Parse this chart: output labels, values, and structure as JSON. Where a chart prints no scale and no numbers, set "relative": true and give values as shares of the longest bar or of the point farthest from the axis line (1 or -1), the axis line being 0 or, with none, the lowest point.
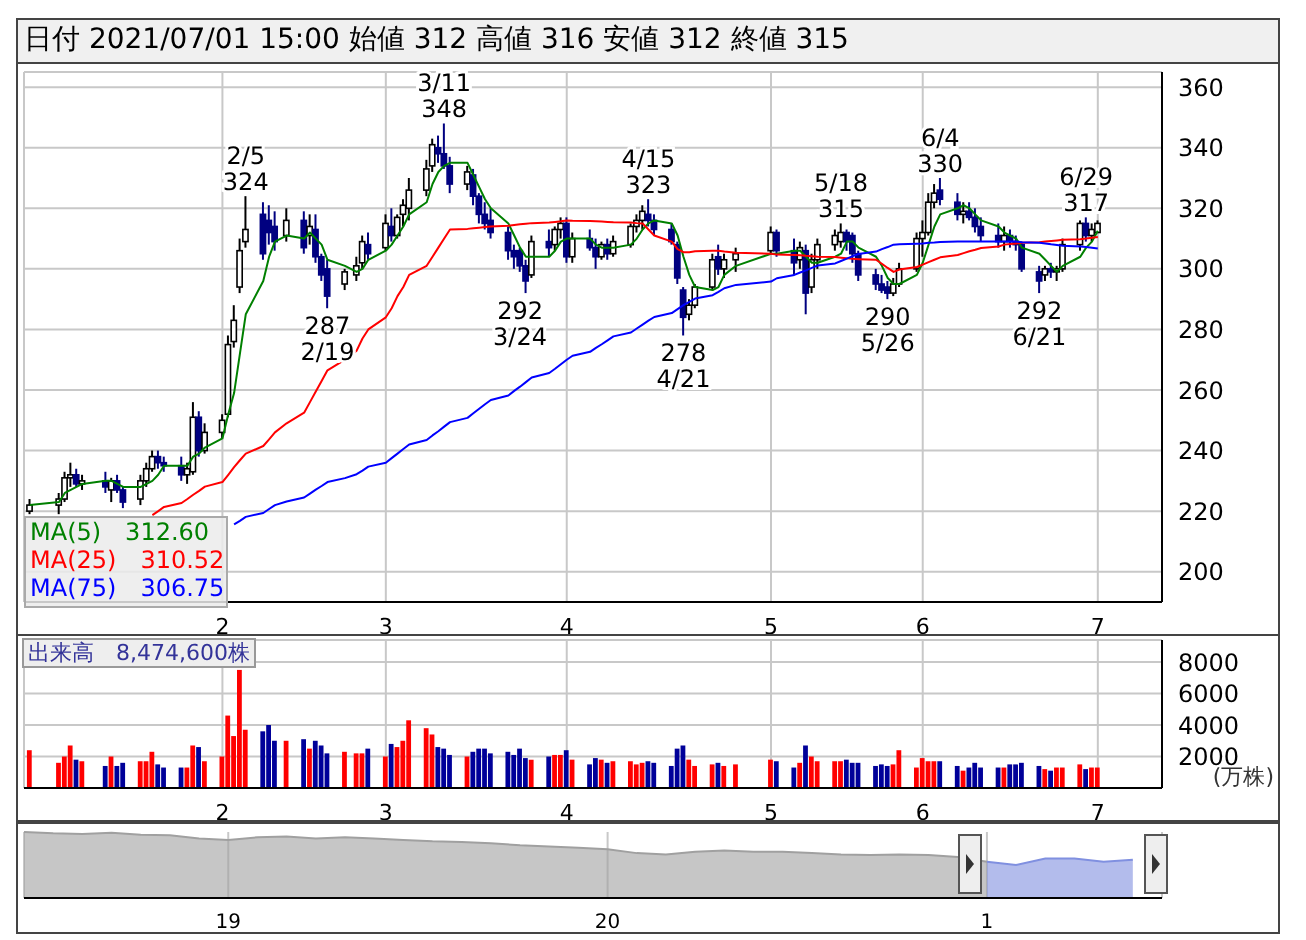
{
  "chart_data": [
    {
      "type": "candlestick",
      "title": "日付 2021/07/01 15:00 始値 312 高値 316 安値 312 終値 315",
      "colors": [
        "#ffffff",
        "#ffffff",
        "#ffffff",
        "#ffffff",
        "#000080",
        "#ffffff",
        "#000080",
        "#ffffff",
        "#000080",
        "#000080",
        "#ffffff",
        "#ffffff",
        "#ffffff",
        "#000080",
        "#000080",
        "#000080",
        "#ffffff",
        "#ffffff",
        "#000080",
        "#ffffff",
        "#ffffff",
        "#ffffff",
        "#ffffff",
        "#ffffff",
        "#ffffff",
        "#000080",
        "#000080",
        "#000080",
        "#ffffff",
        "#000080",
        "#ffffff",
        "#000080",
        "#000080",
        "#000080",
        "#ffffff",
        "#ffffff",
        "#ffffff",
        "#000080",
        "#ffffff",
        "#000080",
        "#ffffff",
        "#ffffff",
        "#ffffff",
        "#ffffff",
        "#ffffff",
        "#000080",
        "#000080",
        "#000080",
        "#ffffff",
        "#000080",
        "#000080",
        "#000080",
        "#000080",
        "#000080",
        "#000080",
        "#000080",
        "#000080",
        "#ffffff",
        "#000080",
        "#ffffff",
        "#ffffff",
        "#000080",
        "#ffffff",
        "#000080",
        "#000080",
        "#ffffff",
        "#000080",
        "#ffffff",
        "#ffffff",
        "#ffffff",
        "#ffffff",
        "#000080",
        "#000080",
        "#000080",
        "#000080",
        "#000080",
        "#ffffff",
        "#ffffff",
        "#ffffff",
        "#000080",
        "#ffffff",
        "#ffffff",
        "#ffffff",
        "#000080",
        "#000080",
        "#ffffff",
        "#000080",
        "#ffffff",
        "#ffffff",
        "#ffffff",
        "#ffffff",
        "#000080",
        "#000080",
        "#000080",
        "#000080",
        "#000080",
        "#000080",
        "#ffffff",
        "#ffffff",
        "#ffffff",
        "#ffffff",
        "#ffffff",
        "#ffffff",
        "#000080",
        "#000080",
        "#ffffff",
        "#000080",
        "#000080",
        "#000080",
        "#000080",
        "#ffffff",
        "#000080",
        "#000080",
        "#000080",
        "#000080",
        "#ffffff",
        "#000080",
        "#ffffff",
        "#ffffff",
        "#ffffff",
        "#000080",
        "#ffffff",
        "#ffffff"
      ],
      "x": [
        "2020-12-30",
        "2021-01-04",
        "2021-01-05",
        "2021-01-06",
        "2021-01-07",
        "2021-01-08",
        "2021-01-12",
        "2021-01-13",
        "2021-01-14",
        "2021-01-15",
        "2021-01-18",
        "2021-01-19",
        "2021-01-20",
        "2021-01-21",
        "2021-01-22",
        "2021-01-25",
        "2021-01-26",
        "2021-01-27",
        "2021-01-28",
        "2021-01-29",
        "2021-02-01",
        "2021-02-02",
        "2021-02-03",
        "2021-02-04",
        "2021-02-05",
        "2021-02-08",
        "2021-02-09",
        "2021-02-10",
        "2021-02-12",
        "2021-02-15",
        "2021-02-16",
        "2021-02-17",
        "2021-02-18",
        "2021-02-19",
        "2021-02-22",
        "2021-02-24",
        "2021-02-25",
        "2021-02-26",
        "2021-03-01",
        "2021-03-02",
        "2021-03-03",
        "2021-03-04",
        "2021-03-05",
        "2021-03-08",
        "2021-03-09",
        "2021-03-10",
        "2021-03-11",
        "2021-03-12",
        "2021-03-15",
        "2021-03-16",
        "2021-03-17",
        "2021-03-18",
        "2021-03-19",
        "2021-03-22",
        "2021-03-23",
        "2021-03-24",
        "2021-03-25",
        "2021-03-26",
        "2021-03-29",
        "2021-03-30",
        "2021-03-31",
        "2021-04-01",
        "2021-04-02",
        "2021-04-05",
        "2021-04-06",
        "2021-04-07",
        "2021-04-08",
        "2021-04-09",
        "2021-04-12",
        "2021-04-13",
        "2021-04-14",
        "2021-04-15",
        "2021-04-16",
        "2021-04-19",
        "2021-04-20",
        "2021-04-21",
        "2021-04-22",
        "2021-04-23",
        "2021-04-26",
        "2021-04-27",
        "2021-04-28",
        "2021-04-30",
        "2021-05-06",
        "2021-05-07",
        "2021-05-10",
        "2021-05-11",
        "2021-05-12",
        "2021-05-13",
        "2021-05-14",
        "2021-05-17",
        "2021-05-18",
        "2021-05-19",
        "2021-05-20",
        "2021-05-21",
        "2021-05-24",
        "2021-05-25",
        "2021-05-26",
        "2021-05-27",
        "2021-05-28",
        "2021-05-31",
        "2021-06-01",
        "2021-06-02",
        "2021-06-03",
        "2021-06-04",
        "2021-06-07",
        "2021-06-08",
        "2021-06-09",
        "2021-06-10",
        "2021-06-11",
        "2021-06-14",
        "2021-06-15",
        "2021-06-16",
        "2021-06-17",
        "2021-06-18",
        "2021-06-21",
        "2021-06-22",
        "2021-06-23",
        "2021-06-24",
        "2021-06-25",
        "2021-06-28",
        "2021-06-29",
        "2021-06-30",
        "2021-07-01"
      ],
      "ohlc": [
        [
          220,
          224,
          219,
          222
        ],
        [
          222,
          226,
          219,
          224
        ],
        [
          224,
          233,
          223,
          231
        ],
        [
          231,
          236,
          228,
          232
        ],
        [
          232,
          234,
          228,
          229
        ],
        [
          229,
          232,
          227,
          230
        ],
        [
          230,
          233,
          226,
          228
        ],
        [
          227,
          231,
          223,
          230
        ],
        [
          230,
          232,
          226,
          227
        ],
        [
          227,
          228,
          221,
          223
        ],
        [
          224,
          232,
          222,
          230
        ],
        [
          230,
          236,
          228,
          234
        ],
        [
          234,
          240,
          233,
          238
        ],
        [
          238,
          240,
          234,
          236
        ],
        [
          236,
          238,
          233,
          235
        ],
        [
          235,
          238,
          230,
          232
        ],
        [
          232,
          236,
          229,
          234
        ],
        [
          233,
          256,
          232,
          251
        ],
        [
          251,
          253,
          238,
          240
        ],
        [
          240,
          249,
          239,
          246
        ],
        [
          246,
          252,
          244,
          250
        ],
        [
          252,
          278,
          251,
          275
        ],
        [
          276,
          288,
          274,
          283
        ],
        [
          294,
          310,
          292,
          306
        ],
        [
          309,
          324,
          307,
          313
        ],
        [
          318,
          322,
          303,
          305
        ],
        [
          316,
          321,
          308,
          312
        ],
        [
          314,
          319,
          306,
          309
        ],
        [
          311,
          320,
          309,
          316
        ],
        [
          316,
          319,
          305,
          307
        ],
        [
          311,
          318,
          308,
          314
        ],
        [
          313,
          318,
          302,
          304
        ],
        [
          304,
          305,
          296,
          298
        ],
        [
          300,
          303,
          287,
          291
        ],
        [
          295,
          300,
          293,
          299
        ],
        [
          298,
          304,
          296,
          301
        ],
        [
          302,
          311,
          300,
          309
        ],
        [
          308,
          312,
          303,
          305
        ],
        [
          307,
          318,
          306,
          315
        ],
        [
          314,
          320,
          309,
          311
        ],
        [
          311,
          318,
          310,
          317
        ],
        [
          318,
          323,
          314,
          321
        ],
        [
          320,
          330,
          316,
          326
        ],
        [
          326,
          336,
          324,
          333
        ],
        [
          334,
          343,
          332,
          341
        ],
        [
          340,
          344,
          335,
          338
        ],
        [
          338,
          348,
          333,
          334
        ],
        [
          334,
          337,
          325,
          328
        ],
        [
          328,
          334,
          326,
          332
        ],
        [
          331,
          333,
          321,
          324
        ],
        [
          324,
          325,
          315,
          318
        ],
        [
          318,
          322,
          313,
          315
        ],
        [
          316,
          320,
          310,
          312
        ],
        [
          312,
          314,
          303,
          306
        ],
        [
          306,
          308,
          300,
          304
        ],
        [
          306,
          307,
          299,
          301
        ],
        [
          301,
          303,
          292,
          296
        ],
        [
          298,
          311,
          297,
          309
        ],
        [
          309,
          313,
          304,
          307
        ],
        [
          308,
          314,
          306,
          313
        ],
        [
          313,
          317,
          310,
          315
        ],
        [
          315,
          317,
          302,
          304
        ],
        [
          304,
          312,
          302,
          310
        ],
        [
          310,
          313,
          306,
          307
        ],
        [
          307,
          310,
          300,
          304
        ],
        [
          304,
          309,
          303,
          308
        ],
        [
          308,
          310,
          303,
          305
        ],
        [
          305,
          311,
          304,
          309
        ],
        [
          308,
          315,
          307,
          314
        ],
        [
          314,
          318,
          312,
          316
        ],
        [
          316,
          321,
          313,
          319
        ],
        [
          318,
          323,
          314,
          316
        ],
        [
          316,
          318,
          311,
          313
        ],
        [
          313,
          315,
          308,
          309
        ],
        [
          308,
          309,
          295,
          297
        ],
        [
          293,
          294,
          278,
          284
        ],
        [
          285,
          290,
          283,
          288
        ],
        [
          288,
          295,
          287,
          294
        ],
        [
          294,
          305,
          293,
          303
        ],
        [
          304,
          308,
          298,
          300
        ],
        [
          300,
          305,
          297,
          303
        ],
        [
          303,
          307,
          299,
          305
        ],
        [
          306,
          314,
          305,
          312
        ],
        [
          312,
          313,
          304,
          306
        ],
        [
          306,
          310,
          298,
          302
        ],
        [
          303,
          309,
          300,
          307
        ],
        [
          306,
          308,
          285,
          292
        ],
        [
          294,
          305,
          292,
          303
        ],
        [
          303,
          310,
          300,
          308
        ],
        [
          308,
          313,
          306,
          311
        ],
        [
          309,
          315,
          307,
          312
        ],
        [
          312,
          313,
          306,
          309
        ],
        [
          311,
          312,
          302,
          305
        ],
        [
          305,
          306,
          296,
          298
        ],
        [
          298,
          300,
          293,
          295
        ],
        [
          295,
          298,
          292,
          293
        ],
        [
          294,
          296,
          290,
          292
        ],
        [
          292,
          297,
          291,
          295
        ],
        [
          295,
          302,
          294,
          300
        ],
        [
          300,
          312,
          299,
          310
        ],
        [
          310,
          316,
          304,
          312
        ],
        [
          312,
          325,
          311,
          322
        ],
        [
          322,
          328,
          320,
          325
        ],
        [
          326,
          330,
          321,
          323
        ],
        [
          322,
          325,
          316,
          318
        ],
        [
          318,
          322,
          315,
          319
        ],
        [
          319,
          322,
          316,
          317
        ],
        [
          317,
          320,
          312,
          314
        ],
        [
          314,
          317,
          309,
          311
        ],
        [
          311,
          315,
          307,
          309
        ],
        [
          309,
          314,
          306,
          311
        ],
        [
          311,
          313,
          307,
          309
        ],
        [
          309,
          311,
          306,
          308
        ],
        [
          308,
          309,
          299,
          300
        ],
        [
          299,
          301,
          292,
          296
        ],
        [
          298,
          301,
          296,
          300
        ],
        [
          300,
          302,
          297,
          299
        ],
        [
          299,
          301,
          296,
          300
        ],
        [
          300,
          310,
          299,
          308
        ],
        [
          308,
          316,
          306,
          315
        ],
        [
          315,
          317,
          309,
          311
        ],
        [
          311,
          315,
          309,
          313
        ],
        [
          312,
          316,
          312,
          315
        ]
      ],
      "series": [
        {
          "type": "line",
          "name": "MA(5)　312.60",
          "color": "#008000",
          "values": [
            222,
            223,
            226,
            227,
            228,
            229,
            230,
            230,
            229,
            228,
            228,
            229,
            230,
            232,
            235,
            235,
            235,
            238,
            239,
            241,
            244,
            252,
            259,
            272,
            285,
            296,
            304,
            309,
            311,
            310,
            312,
            310,
            308,
            303,
            301,
            299,
            300,
            303,
            306,
            308,
            311,
            314,
            318,
            322,
            328,
            332,
            334,
            335,
            335,
            331,
            327,
            323,
            320,
            315,
            311,
            307,
            304,
            304,
            304,
            306,
            309,
            310,
            310,
            310,
            308,
            307,
            307,
            307,
            308,
            310,
            313,
            315,
            316,
            315,
            311,
            304,
            298,
            294,
            293,
            294,
            298,
            301,
            305,
            305,
            306,
            306,
            304,
            302,
            302,
            304,
            305,
            309,
            309,
            307,
            304,
            301,
            297,
            295,
            295,
            298,
            302,
            308,
            314,
            318,
            320,
            321,
            320,
            318,
            316,
            314,
            312,
            311,
            310,
            307,
            305,
            303,
            301,
            299,
            301,
            304,
            307,
            309,
            312.6
          ]
        },
        {
          "type": "line",
          "name": "MA(25)　310.52",
          "color": "#ff0000",
          "values": [
            null,
            null,
            null,
            null,
            null,
            null,
            null,
            null,
            null,
            null,
            null,
            null,
            218.7,
            220,
            221.4,
            222.7,
            224,
            225.4,
            226.7,
            228.1,
            229.6,
            232,
            234.5,
            236.8,
            239,
            241.5,
            243.7,
            246,
            249,
            252.5,
            256,
            259.5,
            263,
            266.5,
            270,
            273,
            277,
            280,
            284,
            287,
            291,
            294,
            298,
            301,
            304,
            307,
            310,
            313,
            313.2,
            313.4,
            313.6,
            313.8,
            314,
            314.2,
            314.5,
            314.7,
            314.9,
            315.1,
            315.3,
            315.5,
            315.7,
            316,
            315.9,
            315.8,
            315.7,
            315.6,
            315.5,
            315.4,
            315.3,
            315.1,
            315,
            313,
            311,
            309,
            306.5,
            305.5,
            305.5,
            305.8,
            306,
            306,
            305.7,
            305.3,
            305,
            304.7,
            304.6,
            304.5,
            304.3,
            304.2,
            304,
            303.9,
            303.7,
            303.5,
            303.3,
            303.2,
            303,
            301.7,
            300.3,
            299,
            299.8,
            300.6,
            301.4,
            302.2,
            303,
            303.8,
            304.6,
            305.2,
            305.8,
            306.3,
            306.9,
            307.4,
            308,
            308.2,
            308.4,
            308.6,
            308.8,
            309,
            309.2,
            309.4,
            309.6,
            309.8,
            310,
            310.3,
            310.52
          ]
        },
        {
          "type": "line",
          "name": "MA(75)　306.75",
          "color": "#0000ff",
          "values": [
            null,
            null,
            null,
            null,
            null,
            null,
            null,
            null,
            null,
            null,
            null,
            null,
            null,
            null,
            null,
            null,
            null,
            null,
            null,
            null,
            null,
            null,
            215.6,
            216.8,
            218.1,
            219.4,
            220.7,
            222,
            223.2,
            224.5,
            225.8,
            227.1,
            228.3,
            229.6,
            230.9,
            232.2,
            233.4,
            234.7,
            236,
            237.5,
            239,
            240.5,
            242,
            243.5,
            245,
            246.4,
            247.9,
            249.4,
            250.8,
            252.3,
            253.8,
            255.3,
            256.7,
            258.2,
            259.7,
            261.1,
            262.6,
            264.1,
            265.6,
            267,
            268.5,
            270,
            271.3,
            272.6,
            273.9,
            275.1,
            276.4,
            277.7,
            279,
            280.3,
            281.6,
            282.9,
            284.1,
            285.4,
            286.7,
            288,
            289.1,
            290.2,
            291.3,
            292.4,
            293.6,
            294.7,
            295.8,
            296.9,
            298,
            298.8,
            299.5,
            300.3,
            301.1,
            301.8,
            302.6,
            303.4,
            304.2,
            304.9,
            305.7,
            306.5,
            307.2,
            308,
            308.1,
            308.3,
            308.4,
            308.6,
            308.7,
            308.9,
            309,
            309,
            309,
            309,
            309,
            309,
            309,
            309,
            309,
            308.8,
            308.6,
            308.4,
            308.1,
            307.9,
            307.6,
            307.4,
            307.2,
            307,
            306.75
          ]
        }
      ],
      "ylim": [
        190,
        365
      ],
      "yticks": [
        200,
        220,
        240,
        260,
        280,
        300,
        320,
        340,
        360
      ],
      "xlim": [
        "2020-12-29",
        "2021-07-12"
      ],
      "xticks": [
        {
          "value": "2021-02-01",
          "label": "2"
        },
        {
          "value": "2021-03-01",
          "label": "3"
        },
        {
          "value": "2021-04-01",
          "label": "4"
        },
        {
          "value": "2021-05-06",
          "label": "5"
        },
        {
          "value": "2021-06-01",
          "label": "6"
        },
        {
          "value": "2021-07-01",
          "label": "7"
        }
      ],
      "grid": true,
      "legend": "bottom left",
      "annotations": [
        {
          "text": "2/5\n324",
          "x": "2021-02-05",
          "y": 324
        },
        {
          "text": "287\n2/19",
          "x": "2021-02-19",
          "y": 287
        },
        {
          "text": "3/11\n348",
          "x": "2021-03-11",
          "y": 348
        },
        {
          "text": "292\n3/24",
          "x": "2021-03-24",
          "y": 292
        },
        {
          "text": "4/15\n323",
          "x": "2021-04-15",
          "y": 323
        },
        {
          "text": "278\n4/21",
          "x": "2021-04-21",
          "y": 278
        },
        {
          "text": "5/18\n315",
          "x": "2021-05-18",
          "y": 315
        },
        {
          "text": "290\n5/26",
          "x": "2021-05-26",
          "y": 290
        },
        {
          "text": "6/4\n330",
          "x": "2021-06-04",
          "y": 330
        },
        {
          "text": "292\n6/21",
          "x": "2021-06-21",
          "y": 292
        },
        {
          "text": "6/29\n317",
          "x": "2021-06-29",
          "y": 317
        }
      ]
    },
    {
      "type": "bar",
      "title": "出来高　8,474,600株",
      "ylabel": "(万株)",
      "x": [
        "2020-12-30",
        "2021-01-04",
        "2021-01-05",
        "2021-01-06",
        "2021-01-07",
        "2021-01-08",
        "2021-01-12",
        "2021-01-13",
        "2021-01-14",
        "2021-01-15",
        "2021-01-18",
        "2021-01-19",
        "2021-01-20",
        "2021-01-21",
        "2021-01-22",
        "2021-01-25",
        "2021-01-26",
        "2021-01-27",
        "2021-01-28",
        "2021-01-29",
        "2021-02-01",
        "2021-02-02",
        "2021-02-03",
        "2021-02-04",
        "2021-02-05",
        "2021-02-08",
        "2021-02-09",
        "2021-02-10",
        "2021-02-12",
        "2021-02-15",
        "2021-02-16",
        "2021-02-17",
        "2021-02-18",
        "2021-02-19",
        "2021-02-22",
        "2021-02-24",
        "2021-02-25",
        "2021-02-26",
        "2021-03-01",
        "2021-03-02",
        "2021-03-03",
        "2021-03-04",
        "2021-03-05",
        "2021-03-08",
        "2021-03-09",
        "2021-03-10",
        "2021-03-11",
        "2021-03-12",
        "2021-03-15",
        "2021-03-16",
        "2021-03-17",
        "2021-03-18",
        "2021-03-19",
        "2021-03-22",
        "2021-03-23",
        "2021-03-24",
        "2021-03-25",
        "2021-03-26",
        "2021-03-29",
        "2021-03-30",
        "2021-03-31",
        "2021-04-01",
        "2021-04-02",
        "2021-04-05",
        "2021-04-06",
        "2021-04-07",
        "2021-04-08",
        "2021-04-09",
        "2021-04-12",
        "2021-04-13",
        "2021-04-14",
        "2021-04-15",
        "2021-04-16",
        "2021-04-19",
        "2021-04-20",
        "2021-04-21",
        "2021-04-22",
        "2021-04-23",
        "2021-04-26",
        "2021-04-27",
        "2021-04-28",
        "2021-04-30",
        "2021-05-06",
        "2021-05-07",
        "2021-05-10",
        "2021-05-11",
        "2021-05-12",
        "2021-05-13",
        "2021-05-14",
        "2021-05-17",
        "2021-05-18",
        "2021-05-19",
        "2021-05-20",
        "2021-05-21",
        "2021-05-24",
        "2021-05-25",
        "2021-05-26",
        "2021-05-27",
        "2021-05-28",
        "2021-05-31",
        "2021-06-01",
        "2021-06-02",
        "2021-06-03",
        "2021-06-04",
        "2021-06-07",
        "2021-06-08",
        "2021-06-09",
        "2021-06-10",
        "2021-06-11",
        "2021-06-14",
        "2021-06-15",
        "2021-06-16",
        "2021-06-17",
        "2021-06-18",
        "2021-06-21",
        "2021-06-22",
        "2021-06-23",
        "2021-06-24",
        "2021-06-25",
        "2021-06-28",
        "2021-06-29",
        "2021-06-30",
        "2021-07-01"
      ],
      "values": [
        2400,
        1600,
        2000,
        2700,
        1800,
        1700,
        1400,
        2000,
        1400,
        1600,
        1700,
        1700,
        2300,
        1500,
        1300,
        1300,
        1300,
        2700,
        2600,
        1700,
        2000,
        4600,
        3300,
        7500,
        3700,
        3600,
        4000,
        3000,
        3000,
        3100,
        2500,
        3000,
        2700,
        2200,
        2300,
        2200,
        2200,
        2500,
        2000,
        2800,
        2600,
        3000,
        4300,
        3800,
        3400,
        2600,
        2500,
        2100,
        2000,
        2300,
        2500,
        2500,
        2200,
        2300,
        2100,
        2500,
        1900,
        1800,
        2000,
        2100,
        2100,
        2400,
        1800,
        1500,
        1900,
        1800,
        1600,
        1700,
        1700,
        1500,
        1600,
        1700,
        1600,
        1400,
        2500,
        2700,
        1800,
        1400,
        1500,
        1600,
        1400,
        1500,
        1800,
        1700,
        1300,
        1600,
        2700,
        2000,
        1700,
        1700,
        1700,
        1800,
        1600,
        1600,
        1400,
        1500,
        1400,
        1500,
        2400,
        1300,
        1900,
        1700,
        1700,
        1700,
        1400,
        1100,
        1300,
        1600,
        1300,
        1300,
        1300,
        1500,
        1500,
        1600,
        1400,
        1200,
        1100,
        1300,
        1300,
        1500,
        1200,
        1300,
        1300
      ],
      "colors": [
        "#ff0000",
        "#ff0000",
        "#ff0000",
        "#ff0000",
        "#000099",
        "#ff0000",
        "#000099",
        "#ff0000",
        "#000099",
        "#000099",
        "#ff0000",
        "#ff0000",
        "#ff0000",
        "#000099",
        "#000099",
        "#000099",
        "#ff0000",
        "#ff0000",
        "#000099",
        "#ff0000",
        "#ff0000",
        "#ff0000",
        "#ff0000",
        "#ff0000",
        "#ff0000",
        "#000099",
        "#000099",
        "#000099",
        "#ff0000",
        "#000099",
        "#ff0000",
        "#000099",
        "#000099",
        "#000099",
        "#ff0000",
        "#ff0000",
        "#ff0000",
        "#000099",
        "#ff0000",
        "#000099",
        "#ff0000",
        "#ff0000",
        "#ff0000",
        "#ff0000",
        "#ff0000",
        "#000099",
        "#000099",
        "#000099",
        "#ff0000",
        "#000099",
        "#000099",
        "#000099",
        "#000099",
        "#000099",
        "#000099",
        "#000099",
        "#000099",
        "#ff0000",
        "#000099",
        "#ff0000",
        "#ff0000",
        "#000099",
        "#ff0000",
        "#000099",
        "#000099",
        "#ff0000",
        "#000099",
        "#ff0000",
        "#ff0000",
        "#ff0000",
        "#ff0000",
        "#000099",
        "#000099",
        "#000099",
        "#000099",
        "#000099",
        "#ff0000",
        "#ff0000",
        "#ff0000",
        "#000099",
        "#ff0000",
        "#ff0000",
        "#ff0000",
        "#000099",
        "#000099",
        "#ff0000",
        "#000099",
        "#ff0000",
        "#ff0000",
        "#ff0000",
        "#ff0000",
        "#000099",
        "#000099",
        "#000099",
        "#000099",
        "#000099",
        "#000099",
        "#ff0000",
        "#ff0000",
        "#ff0000",
        "#ff0000",
        "#ff0000",
        "#ff0000",
        "#000099",
        "#000099",
        "#ff0000",
        "#000099",
        "#000099",
        "#000099",
        "#000099",
        "#ff0000",
        "#000099",
        "#000099",
        "#000099",
        "#000099",
        "#ff0000",
        "#000099",
        "#ff0000",
        "#ff0000",
        "#ff0000",
        "#000099",
        "#ff0000",
        "#ff0000"
      ],
      "ylim": [
        0,
        9400
      ],
      "yticks": [
        2000,
        4000,
        6000,
        8000
      ],
      "xlim": [
        "2020-12-29",
        "2021-07-12"
      ],
      "xticks": [
        {
          "value": "2021-02-01",
          "label": "2"
        },
        {
          "value": "2021-03-01",
          "label": "3"
        },
        {
          "value": "2021-04-01",
          "label": "4"
        },
        {
          "value": "2021-05-06",
          "label": "5"
        },
        {
          "value": "2021-06-01",
          "label": "6"
        },
        {
          "value": "2021-07-01",
          "label": "7"
        }
      ],
      "grid": true
    },
    {
      "type": "area",
      "relative": true,
      "grid": "x",
      "categories": [
        null,
        null,
        null,
        null,
        null,
        null,
        null,
        "19",
        null,
        null,
        null,
        null,
        null,
        null,
        null,
        null,
        null,
        null,
        null,
        null,
        "20",
        null,
        null,
        null,
        null,
        null,
        null,
        null,
        null,
        null,
        null,
        null,
        null,
        "1",
        null,
        null,
        null,
        null,
        null,
        null
      ],
      "series": [
        {
          "color": "#a0a0a0",
          "values": [
            1.0,
            0.98,
            0.97,
            0.99,
            0.96,
            0.95,
            0.9,
            0.88,
            0.92,
            0.93,
            0.9,
            0.92,
            0.9,
            0.88,
            0.86,
            0.85,
            0.83,
            0.8,
            0.78,
            0.76,
            0.74,
            0.68,
            0.66,
            0.7,
            0.72,
            0.7,
            0.7,
            0.68,
            0.66,
            0.65,
            0.66,
            0.65,
            0.62,
            0.55,
            null,
            null,
            null,
            null,
            null,
            null
          ]
        },
        {
          "color": "#8090e0",
          "values": [
            null,
            null,
            null,
            null,
            null,
            null,
            null,
            null,
            null,
            null,
            null,
            null,
            null,
            null,
            null,
            null,
            null,
            null,
            null,
            null,
            null,
            null,
            null,
            null,
            null,
            null,
            null,
            null,
            null,
            null,
            null,
            null,
            null,
            0.55,
            0.5,
            0.6,
            0.6,
            0.55,
            0.58,
            null
          ]
        }
      ]
    }
  ]
}
